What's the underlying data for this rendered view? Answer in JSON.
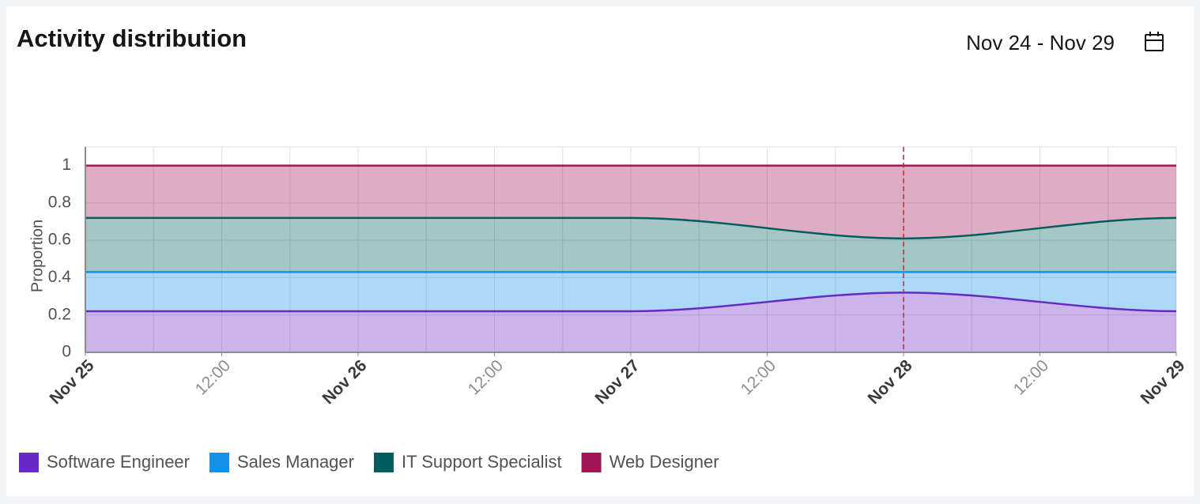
{
  "chart_data": {
    "type": "stacked-area",
    "title": "Activity distribution",
    "date_range": "Nov 24 - Nov 29",
    "y_label": "Proportion",
    "x": [
      "Nov 25",
      "Nov 26",
      "Nov 27",
      "Nov 28",
      "Nov 29"
    ],
    "xticks": [
      "Nov 25",
      "12:00",
      "Nov 26",
      "12:00",
      "Nov 27",
      "12:00",
      "Nov 28",
      "12:00",
      "Nov 29"
    ],
    "ylim": [
      0,
      1.1
    ],
    "yticks": [
      0,
      0.2,
      0.4,
      0.6,
      0.8,
      1
    ],
    "grid": true,
    "legend": "bottom",
    "series": [
      {
        "name": "Software Engineer",
        "color": "#6929c4",
        "values": [
          0.22,
          0.22,
          0.22,
          0.32,
          0.22
        ]
      },
      {
        "name": "Sales Manager",
        "color": "#1192e8",
        "values": [
          0.21,
          0.21,
          0.21,
          0.11,
          0.21
        ]
      },
      {
        "name": "IT Support Specialist",
        "color": "#005d5d",
        "values": [
          0.29,
          0.29,
          0.29,
          0.18,
          0.29
        ]
      },
      {
        "name": "Web Designer",
        "color": "#9f1853",
        "values": [
          0.28,
          0.28,
          0.28,
          0.39,
          0.28
        ]
      }
    ]
  }
}
